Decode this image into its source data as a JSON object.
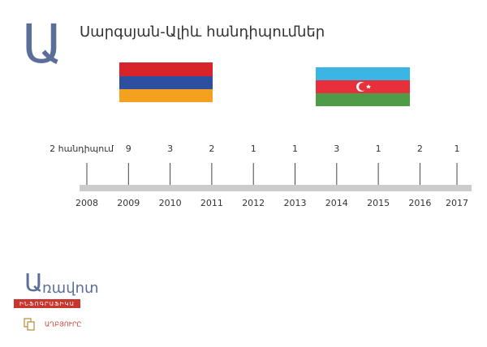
{
  "chart_data": {
    "type": "timeline",
    "title": "Սարգսյան-Ալիև հանդիպումներ",
    "categories": [
      "2008",
      "2009",
      "2010",
      "2011",
      "2012",
      "2013",
      "2014",
      "2015",
      "2016",
      "2017"
    ],
    "values": [
      2,
      9,
      3,
      2,
      1,
      1,
      3,
      1,
      2,
      1
    ],
    "value_labels": [
      "2 հանդիպում",
      "9",
      "3",
      "2",
      "1",
      "1",
      "3",
      "1",
      "2",
      "1"
    ],
    "color": "#cccccc"
  },
  "branding": {
    "logo_letter": "Ա",
    "logo_name": "ռավոտ",
    "logo_sub": "ԻՆՖՈԳՐԱՖԻԿԱ",
    "source": "ԱՂԲՅՈՒՐԸ"
  }
}
